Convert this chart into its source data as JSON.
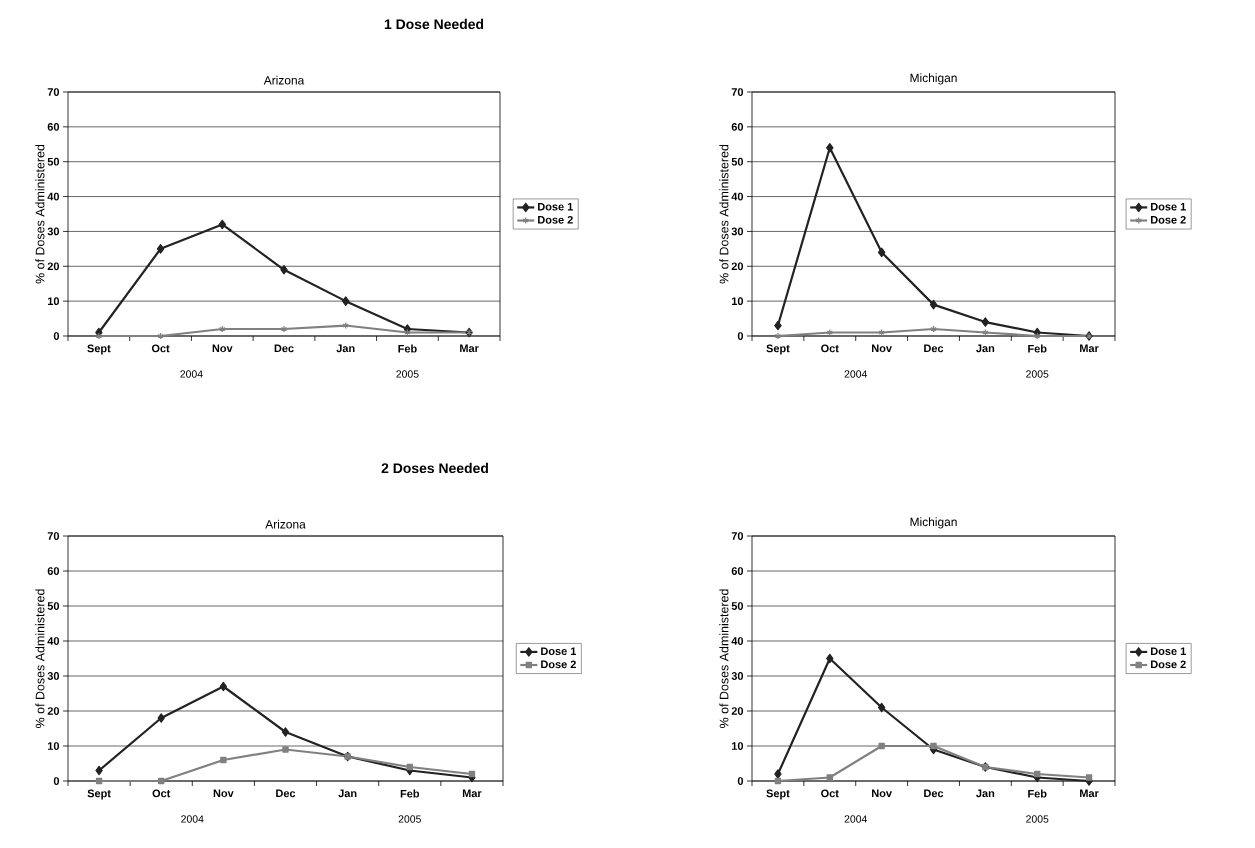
{
  "chart_data": [
    {
      "type": "line",
      "subtitle": "1 Dose Needed",
      "title": "Arizona",
      "ylabel": "% of Doses Administered",
      "categories": [
        "Sept",
        "Oct",
        "Nov",
        "Dec",
        "Jan",
        "Feb",
        "Mar"
      ],
      "annotations": [
        "2004",
        "2005"
      ],
      "ylim": [
        0,
        70
      ],
      "yticks": [
        0,
        10,
        20,
        30,
        40,
        50,
        60,
        70
      ],
      "grid": "y",
      "legend": "right",
      "line_style": "solid",
      "series": [
        {
          "name": "Dose 1",
          "color": "#222222",
          "marker": "diamond",
          "values": [
            1,
            25,
            32,
            19,
            10,
            2,
            1
          ]
        },
        {
          "name": "Dose 2",
          "color": "#808080",
          "marker": "cross",
          "values": [
            0,
            0,
            2,
            2,
            3,
            1,
            1
          ]
        }
      ]
    },
    {
      "type": "line",
      "title": "Michigan",
      "ylabel": "% of Doses Administered",
      "categories": [
        "Sept",
        "Oct",
        "Nov",
        "Dec",
        "Jan",
        "Feb",
        "Mar"
      ],
      "annotations": [
        "2004",
        "2005"
      ],
      "ylim": [
        0,
        70
      ],
      "yticks": [
        0,
        10,
        20,
        30,
        40,
        50,
        60,
        70
      ],
      "grid": "y",
      "legend": "right",
      "line_style": "solid",
      "series": [
        {
          "name": "Dose 1",
          "color": "#222222",
          "marker": "diamond",
          "values": [
            3,
            54,
            24,
            9,
            4,
            1,
            0
          ]
        },
        {
          "name": "Dose 2",
          "color": "#808080",
          "marker": "cross",
          "values": [
            0,
            1,
            1,
            2,
            1,
            0,
            0
          ]
        }
      ]
    },
    {
      "type": "line",
      "subtitle": "2 Doses Needed",
      "title": "Arizona",
      "ylabel": "% of Doses Administered",
      "categories": [
        "Sept",
        "Oct",
        "Nov",
        "Dec",
        "Jan",
        "Feb",
        "Mar"
      ],
      "annotations": [
        "2004",
        "2005"
      ],
      "ylim": [
        0,
        70
      ],
      "yticks": [
        0,
        10,
        20,
        30,
        40,
        50,
        60,
        70
      ],
      "grid": "y",
      "legend": "right",
      "line_style": "solid",
      "series": [
        {
          "name": "Dose 1",
          "color": "#222222",
          "marker": "diamond",
          "values": [
            3,
            18,
            27,
            14,
            7,
            3,
            1
          ]
        },
        {
          "name": "Dose 2",
          "color": "#808080",
          "marker": "square",
          "values": [
            0,
            0,
            6,
            9,
            7,
            4,
            2
          ]
        }
      ]
    },
    {
      "type": "line",
      "title": "Michigan",
      "ylabel": "% of Doses Administered",
      "categories": [
        "Sept",
        "Oct",
        "Nov",
        "Dec",
        "Jan",
        "Feb",
        "Mar"
      ],
      "annotations": [
        "2004",
        "2005"
      ],
      "ylim": [
        0,
        70
      ],
      "yticks": [
        0,
        10,
        20,
        30,
        40,
        50,
        60,
        70
      ],
      "grid": "y",
      "legend": "right",
      "line_style": "solid",
      "series": [
        {
          "name": "Dose 1",
          "color": "#222222",
          "marker": "diamond",
          "values": [
            2,
            35,
            21,
            9,
            4,
            1,
            0
          ]
        },
        {
          "name": "Dose 2",
          "color": "#808080",
          "marker": "square",
          "values": [
            0,
            1,
            10,
            10,
            4,
            2,
            1
          ]
        }
      ]
    }
  ]
}
